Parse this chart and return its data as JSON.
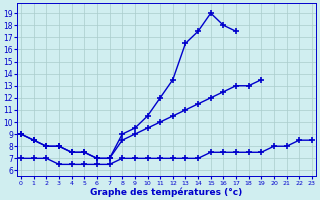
{
  "hours": [
    0,
    1,
    2,
    3,
    4,
    5,
    6,
    7,
    8,
    9,
    10,
    11,
    12,
    13,
    14,
    15,
    16,
    17,
    18,
    19,
    20,
    21,
    22,
    23
  ],
  "tmax": [
    9.0,
    8.5,
    8.0,
    8.0,
    7.5,
    7.5,
    7.0,
    7.0,
    9.0,
    9.5,
    10.5,
    12.0,
    13.5,
    16.5,
    17.5,
    19.0,
    18.0,
    17.5,
    null,
    null,
    null,
    null,
    null,
    null
  ],
  "tmoy": [
    9.0,
    8.5,
    8.0,
    8.0,
    7.5,
    7.5,
    7.0,
    7.0,
    8.5,
    9.0,
    9.5,
    10.0,
    10.5,
    11.0,
    11.5,
    12.0,
    12.5,
    13.0,
    13.0,
    13.5,
    null,
    null,
    null,
    null
  ],
  "tmin_hours": [
    0,
    1,
    2,
    3,
    4,
    5,
    6,
    7,
    8,
    9,
    10,
    11,
    12,
    13,
    14,
    15,
    16,
    17,
    18,
    19,
    20,
    21,
    22,
    23
  ],
  "tmin_vals": [
    7.0,
    7.0,
    7.0,
    6.5,
    6.5,
    6.5,
    6.5,
    6.5,
    7.0,
    7.0,
    7.0,
    7.0,
    7.0,
    7.0,
    7.0,
    7.5,
    7.5,
    7.5,
    7.5,
    7.5,
    8.0,
    8.0,
    8.5,
    8.5
  ],
  "line_color": "#0000cc",
  "bg_color": "#d0eef0",
  "grid_color": "#aacccc",
  "xlabel": "Graphe des températures (°c)",
  "yticks": [
    6,
    7,
    8,
    9,
    10,
    11,
    12,
    13,
    14,
    15,
    16,
    17,
    18,
    19
  ],
  "ylim": [
    5.5,
    19.8
  ],
  "xlim": [
    -0.3,
    23.3
  ]
}
